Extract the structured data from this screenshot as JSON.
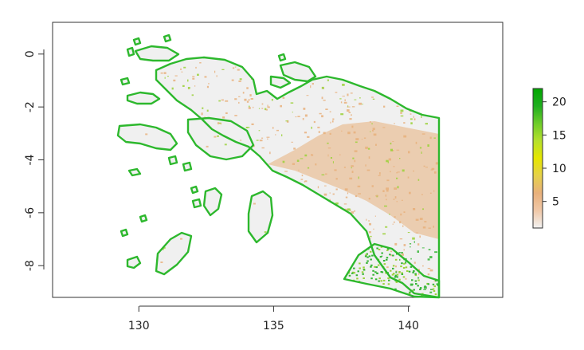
{
  "map": {
    "projection": "lon/lat raster",
    "x_axis": {
      "range": [
        126.8,
        143.5
      ],
      "ticks": [
        "130",
        "135",
        "140"
      ],
      "tick_values": [
        130,
        135,
        140
      ]
    },
    "y_axis": {
      "range": [
        -9.2,
        1.2
      ],
      "ticks": [
        "0",
        "-2",
        "-4",
        "-6",
        "-8"
      ],
      "tick_values": [
        0,
        -2,
        -4,
        -6,
        -8
      ]
    },
    "land_outline_color": "#2db82d",
    "sea_color": "#ffffff",
    "terrain_colors": [
      "#f0f0f0",
      "#e8b07c",
      "#9bd13a",
      "#34b534"
    ]
  },
  "legend": {
    "scale": "continuous",
    "range": [
      1,
      22
    ],
    "ticks": [
      "5",
      "10",
      "15",
      "20"
    ],
    "tick_values": [
      5,
      10,
      15,
      20
    ],
    "gradient_colors": [
      "#f2f2f2",
      "#f0c8a8",
      "#e8b07c",
      "#e6d14a",
      "#e6e600",
      "#b6e02c",
      "#6dcc2a",
      "#1fae1f",
      "#00a600"
    ]
  }
}
